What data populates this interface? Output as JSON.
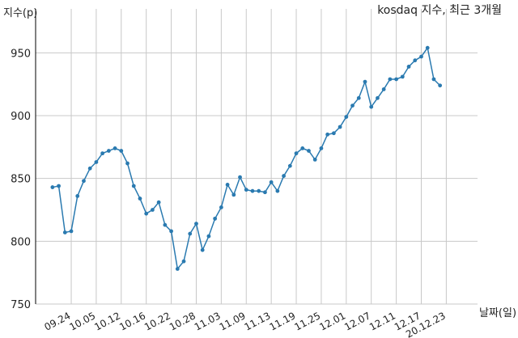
{
  "chart_data": {
    "type": "line",
    "title": "kosdaq 지수, 최근 3개월",
    "ylabel": "지수(p)",
    "xlabel": "날짜(일)",
    "ylim": [
      750,
      985
    ],
    "xlim": [
      -2.7,
      68
    ],
    "yticks": [
      750,
      800,
      850,
      900,
      950
    ],
    "xticks": [
      {
        "label": "09.24",
        "index": 3
      },
      {
        "label": "10.05",
        "index": 7
      },
      {
        "label": "10.12",
        "index": 11
      },
      {
        "label": "10.16",
        "index": 15
      },
      {
        "label": "10.22",
        "index": 19
      },
      {
        "label": "10.28",
        "index": 23
      },
      {
        "label": "11.03",
        "index": 27
      },
      {
        "label": "11.09",
        "index": 31
      },
      {
        "label": "11.13",
        "index": 35
      },
      {
        "label": "11.19",
        "index": 39
      },
      {
        "label": "11.25",
        "index": 43
      },
      {
        "label": "12.01",
        "index": 47
      },
      {
        "label": "12.07",
        "index": 51
      },
      {
        "label": "12.11",
        "index": 55
      },
      {
        "label": "12.17",
        "index": 59
      },
      {
        "label": "20.12.23",
        "index": 63
      }
    ],
    "grid": true,
    "series": [
      {
        "color": "#2a7ab0",
        "values": [
          843,
          844,
          807,
          808,
          836,
          848,
          858,
          863,
          870,
          872,
          874,
          872,
          862,
          844,
          834,
          822,
          825,
          831,
          813,
          808,
          778,
          784,
          806,
          814,
          793,
          804,
          818,
          827,
          845,
          837,
          851,
          841,
          840,
          840,
          839,
          847,
          840,
          852,
          860,
          870,
          874,
          872,
          865,
          874,
          885,
          886,
          891,
          899,
          908,
          914,
          927,
          907,
          914,
          921,
          929,
          929,
          931,
          939,
          944,
          947,
          954,
          929,
          924
        ]
      }
    ]
  }
}
